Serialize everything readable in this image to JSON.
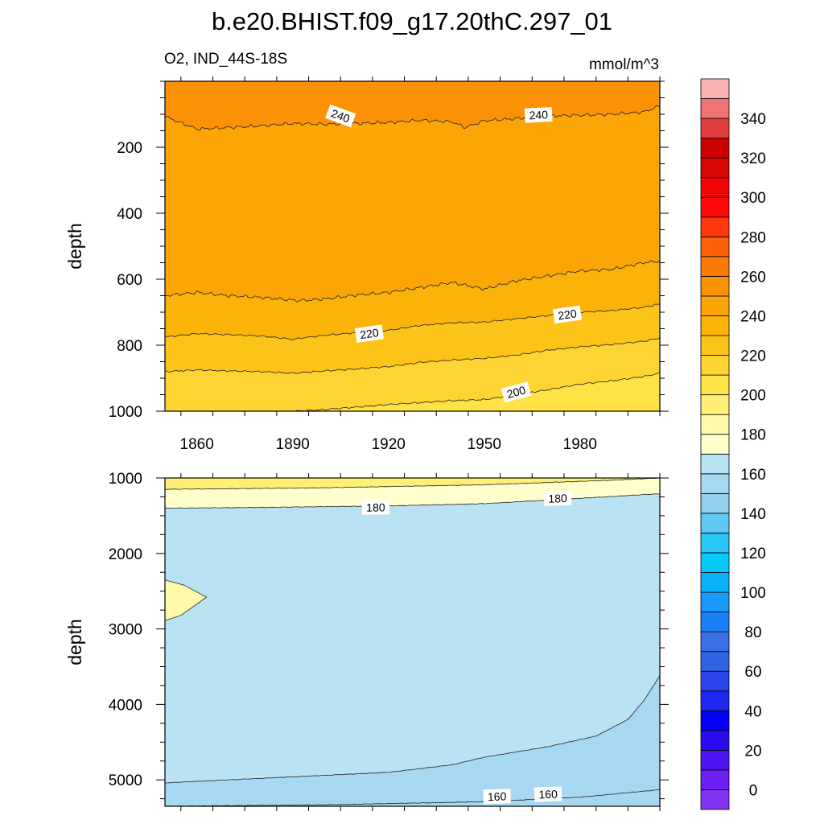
{
  "title": "b.e20.BHIST.f09_g17.20thC.297_01",
  "chart_data": {
    "type": "contour",
    "title": "b.e20.BHIST.f09_g17.20thC.297_01",
    "variable_label": "O2, IND_44S-18S",
    "units": "mmol/m^3",
    "colorbar": {
      "levels": [
        0,
        10,
        20,
        30,
        40,
        50,
        60,
        70,
        80,
        90,
        100,
        110,
        120,
        130,
        140,
        150,
        160,
        170,
        180,
        190,
        200,
        210,
        220,
        230,
        240,
        250,
        260,
        270,
        280,
        290,
        300,
        310,
        320,
        330,
        340,
        350
      ],
      "tick_labels": [
        "0",
        "20",
        "40",
        "60",
        "80",
        "100",
        "120",
        "140",
        "160",
        "180",
        "200",
        "220",
        "240",
        "260",
        "280",
        "300",
        "320",
        "340"
      ],
      "colors": [
        "#8133ee",
        "#6e1ef5",
        "#4d14f2",
        "#2b0cf0",
        "#0400f5",
        "#1e28f0",
        "#2a46ea",
        "#3064e4",
        "#3b6fe6",
        "#1a7ef4",
        "#1a98fc",
        "#08b2f8",
        "#08c9fb",
        "#2ac6f8",
        "#5fc8f3",
        "#90cfee",
        "#a6d9f1",
        "#b9e2f3",
        "#ffffcc",
        "#fff9aa",
        "#ffef77",
        "#fde345",
        "#fdd431",
        "#fcc419",
        "#fbb30a",
        "#fba506",
        "#fb9105",
        "#fb7a06",
        "#fb6008",
        "#fd360e",
        "#fe0a0a",
        "#ef0707",
        "#d80707",
        "#cc0000",
        "#df3c3c",
        "#ef7474",
        "#fbb2b2"
      ]
    },
    "x_axis": {
      "range": [
        1850,
        2005
      ],
      "ticks": [
        1860,
        1890,
        1920,
        1950,
        1980
      ],
      "tick_labels": [
        "1860",
        "1890",
        "1920",
        "1950",
        "1980"
      ]
    },
    "panels": [
      {
        "name": "upper-ocean",
        "ylabel": "depth",
        "y_range": [
          0,
          1000
        ],
        "y_ticks": [
          200,
          400,
          600,
          800,
          1000
        ],
        "y_tick_labels": [
          "200",
          "400",
          "600",
          "800",
          "1000"
        ],
        "regions": [
          {
            "value_range": [
              240,
              250
            ],
            "color": "#fb9105"
          },
          {
            "value_range": [
              230,
              240
            ],
            "color": "#fba506"
          },
          {
            "value_range": [
              220,
              230
            ],
            "color": "#fbb30a"
          },
          {
            "value_range": [
              210,
              220
            ],
            "color": "#fcc419"
          },
          {
            "value_range": [
              200,
              210
            ],
            "color": "#fdd431"
          },
          {
            "value_range": [
              190,
              200
            ],
            "color": "#fde345"
          },
          {
            "value_range": [
              180,
              190
            ],
            "color": "#ffef77"
          }
        ],
        "contours": [
          {
            "level": 240,
            "depth_at": [
              [
                1850,
                107
              ],
              [
                1860,
                145
              ],
              [
                1870,
                140
              ],
              [
                1880,
                135
              ],
              [
                1890,
                128
              ],
              [
                1900,
                130
              ],
              [
                1910,
                128
              ],
              [
                1920,
                125
              ],
              [
                1930,
                118
              ],
              [
                1940,
                123
              ],
              [
                1944,
                140
              ],
              [
                1950,
                120
              ],
              [
                1960,
                113
              ],
              [
                1970,
                105
              ],
              [
                1980,
                103
              ],
              [
                1990,
                100
              ],
              [
                2000,
                93
              ],
              [
                2005,
                75
              ]
            ]
          },
          {
            "level": 230,
            "depth_at": [
              [
                1850,
                650
              ],
              [
                1860,
                640
              ],
              [
                1870,
                650
              ],
              [
                1880,
                655
              ],
              [
                1892,
                665
              ],
              [
                1900,
                660
              ],
              [
                1910,
                648
              ],
              [
                1920,
                640
              ],
              [
                1930,
                625
              ],
              [
                1940,
                610
              ],
              [
                1950,
                630
              ],
              [
                1960,
                605
              ],
              [
                1970,
                590
              ],
              [
                1980,
                575
              ],
              [
                1990,
                570
              ],
              [
                2000,
                550
              ],
              [
                2005,
                545
              ]
            ]
          },
          {
            "level": 220,
            "depth_at": [
              [
                1850,
                775
              ],
              [
                1860,
                765
              ],
              [
                1870,
                768
              ],
              [
                1880,
                772
              ],
              [
                1890,
                782
              ],
              [
                1900,
                770
              ],
              [
                1910,
                762
              ],
              [
                1920,
                755
              ],
              [
                1930,
                740
              ],
              [
                1940,
                732
              ],
              [
                1950,
                730
              ],
              [
                1960,
                720
              ],
              [
                1970,
                710
              ],
              [
                1980,
                700
              ],
              [
                1990,
                695
              ],
              [
                2000,
                685
              ],
              [
                2005,
                675
              ]
            ]
          },
          {
            "level": 210,
            "depth_at": [
              [
                1850,
                880
              ],
              [
                1860,
                875
              ],
              [
                1870,
                878
              ],
              [
                1880,
                880
              ],
              [
                1890,
                885
              ],
              [
                1900,
                878
              ],
              [
                1910,
                872
              ],
              [
                1920,
                865
              ],
              [
                1930,
                852
              ],
              [
                1940,
                845
              ],
              [
                1950,
                840
              ],
              [
                1960,
                830
              ],
              [
                1970,
                815
              ],
              [
                1980,
                805
              ],
              [
                1990,
                798
              ],
              [
                2000,
                788
              ],
              [
                2005,
                778
              ]
            ]
          },
          {
            "level": 200,
            "depth_at": [
              [
                1850,
                1000
              ],
              [
                1890,
                1000
              ],
              [
                1900,
                995
              ],
              [
                1920,
                980
              ],
              [
                1940,
                968
              ],
              [
                1950,
                965
              ],
              [
                1960,
                950
              ],
              [
                1970,
                935
              ],
              [
                1980,
                918
              ],
              [
                1990,
                908
              ],
              [
                2000,
                895
              ],
              [
                2005,
                885
              ]
            ]
          }
        ],
        "contour_labels": [
          {
            "text": "240",
            "year": 1905,
            "depth": 105,
            "angle": 20
          },
          {
            "text": "240",
            "year": 1967,
            "depth": 102,
            "angle": -3
          },
          {
            "text": "220",
            "year": 1914,
            "depth": 765,
            "angle": -8
          },
          {
            "text": "220",
            "year": 1976,
            "depth": 707,
            "angle": -8
          },
          {
            "text": "200",
            "year": 1960,
            "depth": 942,
            "angle": -15
          }
        ]
      },
      {
        "name": "deep-ocean",
        "ylabel": "depth",
        "y_range": [
          1000,
          5350
        ],
        "y_ticks": [
          1000,
          2000,
          3000,
          4000,
          5000
        ],
        "y_tick_labels": [
          "1000",
          "2000",
          "3000",
          "4000",
          "5000"
        ],
        "regions": [
          {
            "value_range": [
              190,
              200
            ],
            "color": "#fde345"
          },
          {
            "value_range": [
              180,
              190
            ],
            "color": "#ffef77"
          },
          {
            "value_range": [
              170,
              180
            ],
            "color": "#ffffcc"
          },
          {
            "value_range": [
              160,
              170
            ],
            "color": "#b9e2f3"
          },
          {
            "value_range": [
              150,
              160
            ],
            "color": "#a6d9f1"
          }
        ],
        "contours": [
          {
            "level": 190,
            "depth_at": [
              [
                1850,
                1000
              ],
              [
                1900,
                1000
              ],
              [
                1950,
                1000
              ],
              [
                2005,
                1000
              ]
            ]
          },
          {
            "level": 185,
            "depth_at": [
              [
                1850,
                1150
              ],
              [
                1900,
                1130
              ],
              [
                1950,
                1090
              ],
              [
                1990,
                1030
              ],
              [
                2005,
                1000
              ]
            ]
          },
          {
            "level": 180,
            "depth_at": [
              [
                1850,
                1400
              ],
              [
                1880,
                1390
              ],
              [
                1920,
                1370
              ],
              [
                1950,
                1340
              ],
              [
                1980,
                1270
              ],
              [
                2000,
                1220
              ],
              [
                2005,
                1210
              ]
            ]
          },
          {
            "level": 170,
            "depth_at": [
              [
                1850,
                5040
              ],
              [
                1880,
                4980
              ],
              [
                1920,
                4900
              ],
              [
                1940,
                4800
              ],
              [
                1950,
                4700
              ],
              [
                1970,
                4560
              ],
              [
                1985,
                4420
              ],
              [
                1995,
                4200
              ],
              [
                2000,
                3950
              ],
              [
                2005,
                3620
              ]
            ]
          },
          {
            "level": 160,
            "depth_at": [
              [
                1850,
                5350
              ],
              [
                1900,
                5330
              ],
              [
                1950,
                5290
              ],
              [
                1980,
                5230
              ],
              [
                2005,
                5130
              ]
            ]
          }
        ],
        "anomaly": {
          "level": 180,
          "depth_at": [
            [
              1850,
              2350
            ],
            [
              1856,
              2420
            ],
            [
              1863,
              2580
            ],
            [
              1855,
              2820
            ],
            [
              1850,
              2890
            ]
          ]
        },
        "contour_labels": [
          {
            "text": "180",
            "year": 1916,
            "depth": 1390,
            "angle": -1
          },
          {
            "text": "180",
            "year": 1973,
            "depth": 1270,
            "angle": -2
          },
          {
            "text": "160",
            "year": 1954,
            "depth": 5220,
            "angle": -2
          },
          {
            "text": "160",
            "year": 1970,
            "depth": 5190,
            "angle": -2
          }
        ]
      }
    ]
  }
}
